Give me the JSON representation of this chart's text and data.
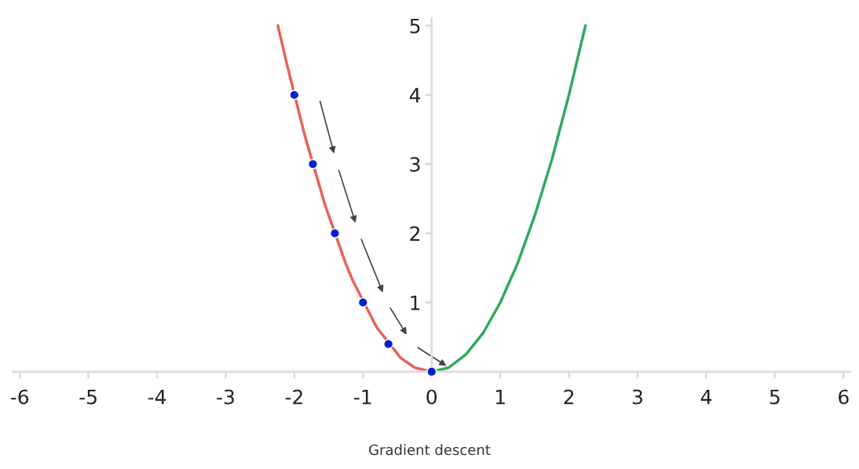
{
  "chart_data": {
    "type": "line",
    "annotations": [
      "Gradient descent"
    ],
    "series": [
      {
        "color": "#e8605a",
        "x": [
          -2.24,
          -2.1,
          -1.85,
          -1.55,
          -1.25,
          -1.15,
          -0.8,
          -0.45,
          -0.25,
          0
        ],
        "values": [
          5,
          4.41,
          3.42,
          2.4,
          1.56,
          1.32,
          0.64,
          0.2,
          0.06,
          0
        ]
      },
      {
        "color": "#2eaa5e",
        "x": [
          0,
          0.25,
          0.5,
          0.75,
          1,
          1.25,
          1.5,
          1.75,
          2,
          2.24
        ],
        "values": [
          0,
          0.06,
          0.25,
          0.56,
          1,
          1.56,
          2.25,
          3.06,
          4,
          5
        ]
      },
      {
        "type": "scatter",
        "color": "#0022cc",
        "marker": "circle",
        "x": [
          -2,
          -1.73,
          -1.41,
          -1,
          -0.63,
          0
        ],
        "values": [
          4,
          3,
          2,
          1,
          0.4,
          0
        ]
      }
    ],
    "xlim": [
      -6.1,
      6.1
    ],
    "xticks": [
      -6,
      -5,
      -4,
      -3,
      -2,
      -1,
      0,
      1,
      2,
      3,
      4,
      5,
      6
    ],
    "ylim": [
      -0.05,
      5.1
    ],
    "yticks": [
      1,
      2,
      3,
      4,
      5
    ],
    "grid": false,
    "legend": false
  }
}
